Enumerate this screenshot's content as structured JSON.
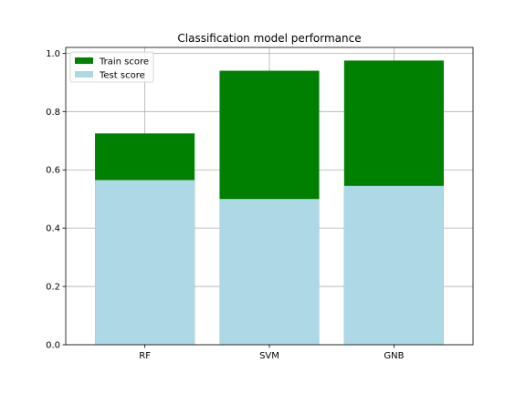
{
  "chart_data": {
    "type": "bar",
    "title": "Classification model performance",
    "xlabel": "",
    "ylabel": "",
    "categories": [
      "RF",
      "SVM",
      "GNB"
    ],
    "series": [
      {
        "name": "Train score",
        "values": [
          0.725,
          0.94,
          0.975
        ],
        "color": "#008000"
      },
      {
        "name": "Test score",
        "values": [
          0.565,
          0.5,
          0.545
        ],
        "color": "#add8e6"
      }
    ],
    "ylim": [
      0,
      1.02
    ],
    "yticks": [
      "0.0",
      "0.2",
      "0.4",
      "0.6",
      "0.8",
      "1.0"
    ],
    "grid": true,
    "legend_position": "top-left",
    "overlay": "test drawn over train"
  }
}
